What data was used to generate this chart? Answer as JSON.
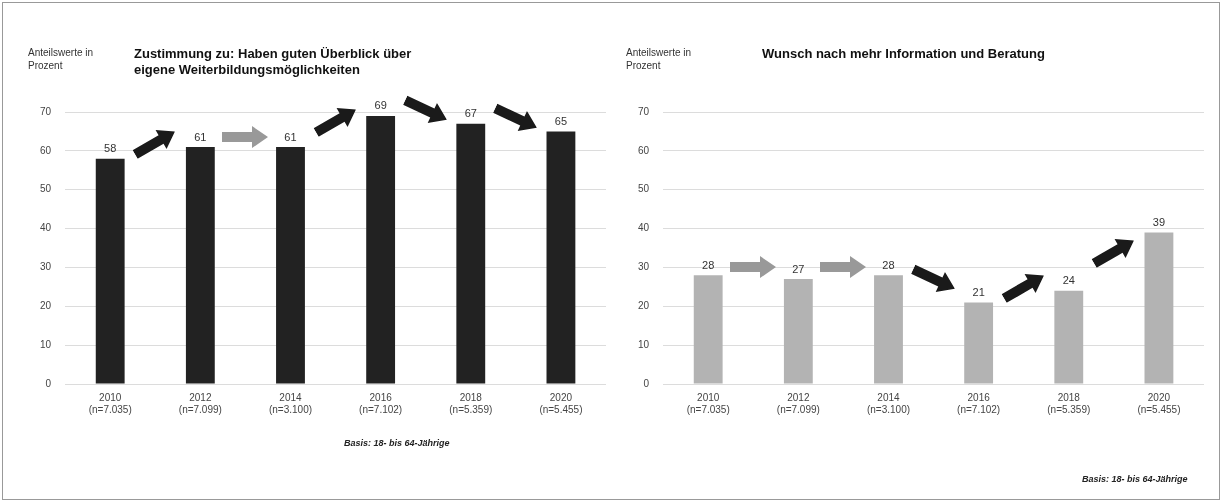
{
  "chart_data": [
    {
      "type": "bar",
      "title": "Zustimmung zu: Haben guten Überblick über eigene Weiterbildungsmöglichkeiten",
      "ylabel": "Anteilswerte in Prozent",
      "categories": [
        "2010\n(n=7.035)",
        "2012\n(n=7.099)",
        "2014\n(n=3.100)",
        "2016\n(n=7.102)",
        "2018\n(n=5.359)",
        "2020\n(n=5.455)"
      ],
      "values": [
        58,
        61,
        61,
        69,
        67,
        65
      ],
      "color": "#222222",
      "ylim": [
        0,
        70
      ],
      "yticks": [
        0,
        10,
        20,
        30,
        40,
        50,
        60,
        70
      ],
      "grid": "y",
      "data_labels": true,
      "annotations": [
        "Basis: 18- bis 64-Jährige"
      ]
    },
    {
      "type": "bar",
      "title": "Wunsch nach mehr Information und Beratung",
      "ylabel": "Anteilswerte in Prozent",
      "categories": [
        "2010\n(n=7.035)",
        "2012\n(n=7.099)",
        "2014\n(n=3.100)",
        "2016\n(n=7.102)",
        "2018\n(n=5.359)",
        "2020\n(n=5.455)"
      ],
      "values": [
        28,
        27,
        28,
        21,
        24,
        39
      ],
      "color": "#b3b3b3",
      "ylim": [
        0,
        70
      ],
      "yticks": [
        0,
        10,
        20,
        30,
        40,
        50,
        60,
        70
      ],
      "grid": "y",
      "data_labels": true,
      "annotations": [
        "Basis: 18- bis 64-Jährige"
      ]
    }
  ]
}
